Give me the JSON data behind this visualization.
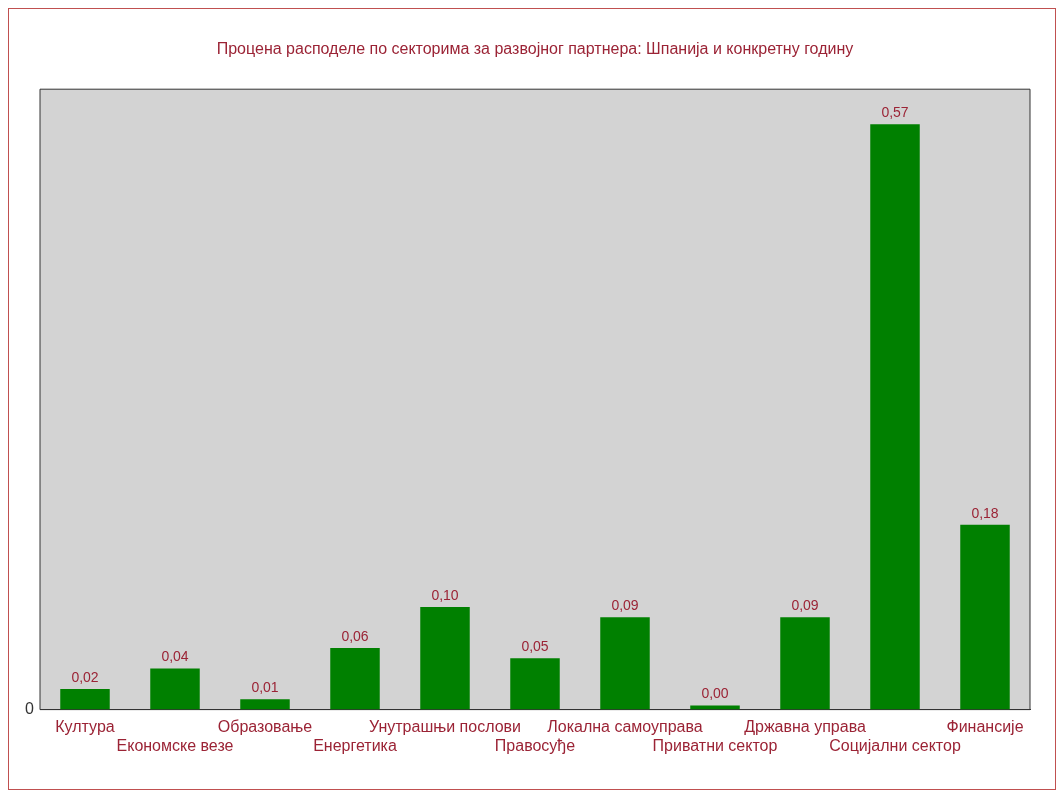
{
  "chart_data": {
    "type": "bar",
    "title": "Процена расподеле по секторима за развојног партнера: Шпанија и конкретну годину",
    "categories": [
      "Култура",
      "Економске везе",
      "Образовање",
      "Енергетика",
      "Унутрашњи послови",
      "Правосуђе",
      "Локална самоуправа",
      "Приватни сектор",
      "Државна управа",
      "Социјални сектор",
      "Финансије"
    ],
    "values": [
      0.02,
      0.04,
      0.01,
      0.06,
      0.1,
      0.05,
      0.09,
      0.004,
      0.09,
      0.57,
      0.18
    ],
    "value_labels": [
      "0,02",
      "0,04",
      "0,01",
      "0,06",
      "0,10",
      "0,05",
      "0,09",
      "0,00",
      "0,09",
      "0,57",
      "0,18"
    ],
    "color": "#008000",
    "annotations": [
      "0"
    ],
    "grid": false,
    "legend": false
  }
}
